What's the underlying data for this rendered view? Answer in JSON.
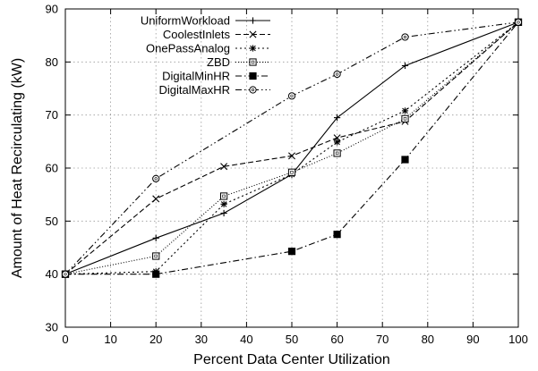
{
  "chart_data": {
    "type": "line",
    "title": "",
    "xlabel": "Percent Data Center Utilization",
    "ylabel": "Amount of Heat Recirculating (kW)",
    "xlim": [
      0,
      100
    ],
    "ylim": [
      30,
      90
    ],
    "xticks": [
      0,
      10,
      20,
      30,
      40,
      50,
      60,
      70,
      80,
      90,
      100
    ],
    "yticks": [
      30,
      40,
      50,
      60,
      70,
      80,
      90
    ],
    "grid": true,
    "legend_position": "top-left",
    "series": [
      {
        "name": "UniformWorkload",
        "marker": "plus",
        "dash": "solid",
        "x": [
          0,
          20,
          35,
          50,
          60,
          75,
          100
        ],
        "y": [
          40,
          46.8,
          51.5,
          58.8,
          69.5,
          79.3,
          87.5
        ]
      },
      {
        "name": "CoolestInlets",
        "marker": "cross",
        "dash": "dashed",
        "x": [
          0,
          20,
          35,
          50,
          60,
          75,
          100
        ],
        "y": [
          40,
          54.2,
          60.3,
          62.3,
          65.7,
          68.8,
          87.5
        ]
      },
      {
        "name": "OnePassAnalog",
        "marker": "star",
        "dash": "dotted",
        "x": [
          0,
          20,
          35,
          50,
          60,
          75,
          100
        ],
        "y": [
          40,
          40.5,
          53.2,
          58.8,
          64.9,
          70.8,
          87.5
        ]
      },
      {
        "name": "ZBD",
        "marker": "square-open",
        "dash": "fine-dotted",
        "x": [
          0,
          20,
          35,
          50,
          60,
          75,
          100
        ],
        "y": [
          40,
          43.4,
          54.7,
          59.2,
          62.8,
          69.3,
          87.5
        ]
      },
      {
        "name": "DigitalMinHR",
        "marker": "square-filled",
        "dash": "dash-dot",
        "x": [
          0,
          20,
          50,
          60,
          75,
          100
        ],
        "y": [
          40,
          40,
          44.3,
          47.5,
          61.6,
          87.5
        ]
      },
      {
        "name": "DigitalMaxHR",
        "marker": "circle-open",
        "dash": "dash-dot-dot",
        "x": [
          0,
          20,
          50,
          60,
          75,
          100
        ],
        "y": [
          40,
          58,
          73.6,
          77.7,
          84.7,
          87.5
        ]
      }
    ]
  }
}
